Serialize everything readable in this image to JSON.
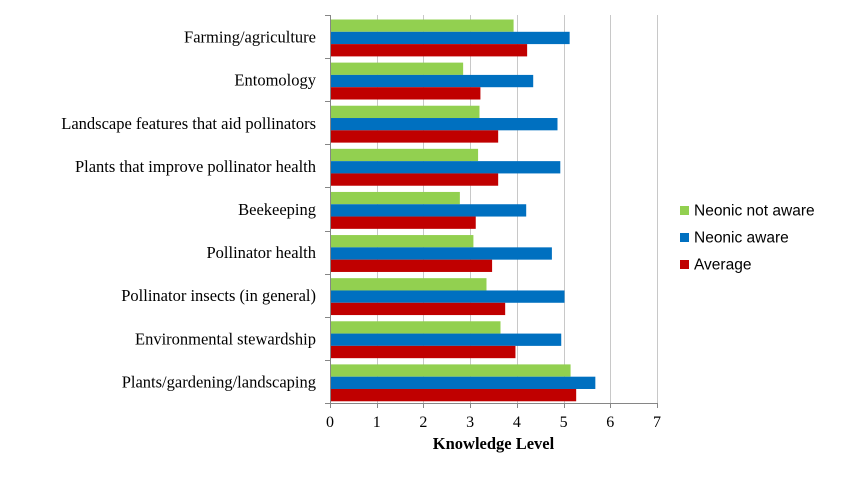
{
  "chart_data": {
    "type": "bar",
    "orientation": "horizontal",
    "title": "",
    "xlabel": "Knowledge Level",
    "ylabel": "",
    "xlim": [
      0,
      7
    ],
    "x_ticks": [
      0,
      1,
      2,
      3,
      4,
      5,
      6,
      7
    ],
    "grid": true,
    "legend_position": "right",
    "categories": [
      "Farming/agriculture",
      "Entomology",
      "Landscape features that aid pollinators",
      "Plants that improve pollinator health",
      "Beekeeping",
      "Pollinator health",
      "Pollinator insects (in general)",
      "Environmental stewardship",
      "Plants/gardening/landscaping"
    ],
    "series": [
      {
        "name": "Neonic not aware",
        "color": "#92d050",
        "values": [
          3.93,
          2.85,
          3.2,
          3.17,
          2.78,
          3.07,
          3.35,
          3.65,
          5.15
        ]
      },
      {
        "name": "Neonic aware",
        "color": "#0070c0",
        "values": [
          5.13,
          4.35,
          4.87,
          4.93,
          4.2,
          4.75,
          5.02,
          4.95,
          5.68
        ]
      },
      {
        "name": "Average",
        "color": "#c00000",
        "values": [
          4.22,
          3.22,
          3.6,
          3.6,
          3.12,
          3.47,
          3.75,
          3.97,
          5.27
        ]
      }
    ]
  }
}
